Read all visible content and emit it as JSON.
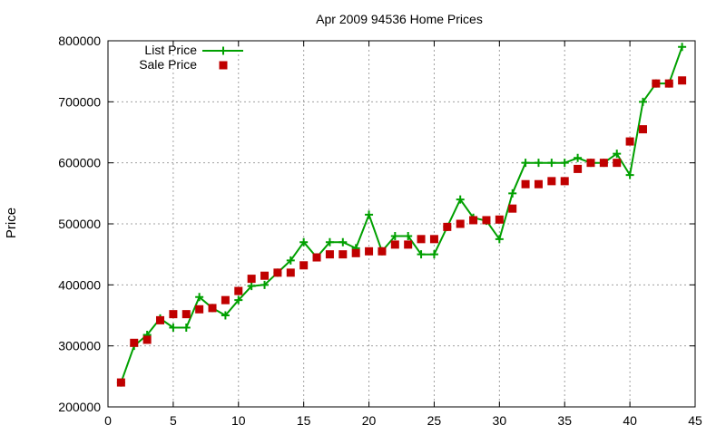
{
  "chart_data": {
    "type": "line",
    "title": "Apr 2009 94536 Home Prices",
    "xlabel": "",
    "ylabel": "Price",
    "xlim": [
      0,
      45
    ],
    "ylim": [
      200000,
      800000
    ],
    "xticks": [
      0,
      5,
      10,
      15,
      20,
      25,
      30,
      35,
      40,
      45
    ],
    "yticks": [
      200000,
      300000,
      400000,
      500000,
      600000,
      700000,
      800000
    ],
    "grid": true,
    "legend_position": "top-left",
    "colors": {
      "list": "#00a000",
      "sale": "#c00000"
    },
    "series": [
      {
        "name": "List Price",
        "style": "line+plus-markers",
        "x": [
          1,
          2,
          3,
          4,
          5,
          6,
          7,
          8,
          9,
          10,
          11,
          12,
          13,
          14,
          15,
          16,
          17,
          18,
          19,
          20,
          21,
          22,
          23,
          24,
          25,
          26,
          27,
          28,
          29,
          30,
          31,
          32,
          33,
          34,
          35,
          36,
          37,
          38,
          39,
          40,
          41,
          42,
          43,
          44
        ],
        "y": [
          240000,
          300000,
          318000,
          345000,
          330000,
          330000,
          380000,
          362000,
          350000,
          375000,
          398000,
          400000,
          420000,
          440000,
          470000,
          445000,
          470000,
          470000,
          460000,
          515000,
          455000,
          480000,
          480000,
          450000,
          450000,
          495000,
          540000,
          510000,
          505000,
          475000,
          550000,
          600000,
          600000,
          600000,
          600000,
          608000,
          600000,
          600000,
          615000,
          580000,
          700000,
          730000,
          730000,
          790000
        ]
      },
      {
        "name": "Sale Price",
        "style": "square-markers",
        "x": [
          1,
          2,
          3,
          4,
          5,
          6,
          7,
          8,
          9,
          10,
          11,
          12,
          13,
          14,
          15,
          16,
          17,
          18,
          19,
          20,
          21,
          22,
          23,
          24,
          25,
          26,
          27,
          28,
          29,
          30,
          31,
          32,
          33,
          34,
          35,
          36,
          37,
          38,
          39,
          40,
          41,
          42,
          43,
          44
        ],
        "y": [
          240000,
          305000,
          310000,
          342000,
          352000,
          352000,
          360000,
          362000,
          375000,
          390000,
          410000,
          415000,
          420000,
          420000,
          432000,
          445000,
          450000,
          450000,
          452000,
          455000,
          455000,
          466000,
          466000,
          475000,
          475000,
          495000,
          500000,
          506000,
          506000,
          507000,
          525000,
          565000,
          565000,
          570000,
          570000,
          590000,
          600000,
          600000,
          600000,
          635000,
          655000,
          730000,
          730000,
          735000
        ]
      }
    ]
  }
}
